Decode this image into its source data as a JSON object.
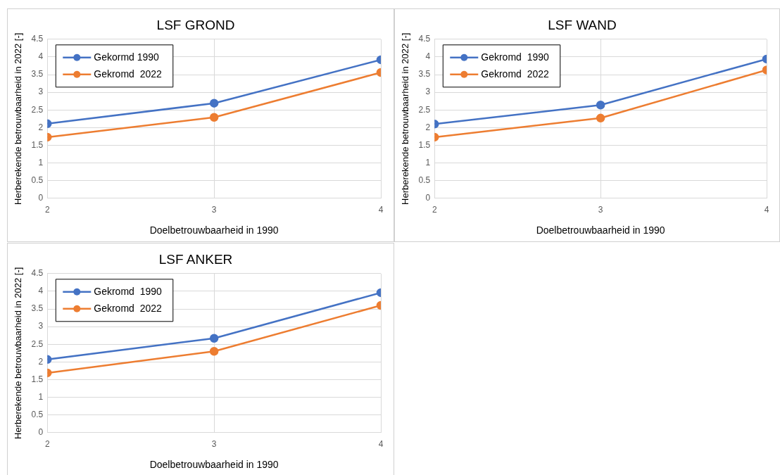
{
  "chart_data": [
    {
      "type": "line",
      "title": "LSF GROND",
      "xlabel": "Doelbetrouwbaarheid in 1990",
      "ylabel": "Herberekende betrouwbaarheid in 2022 [-]",
      "x": [
        2,
        3,
        4
      ],
      "xlim": [
        2,
        4
      ],
      "xticks": [
        2,
        3,
        4
      ],
      "ylim": [
        0,
        4.5
      ],
      "yticks": [
        0,
        0.5,
        1,
        1.5,
        2,
        2.5,
        3,
        3.5,
        4,
        4.5
      ],
      "grid": true,
      "legend": "top left",
      "marker": "circle",
      "line_style": "solid",
      "series": [
        {
          "name": "Gekormd 1990",
          "color": "#4472c4",
          "values": [
            2.11,
            2.69,
            3.92
          ]
        },
        {
          "name": "Gekromd  2022",
          "color": "#ed7d31",
          "values": [
            1.73,
            2.29,
            3.56
          ]
        }
      ]
    },
    {
      "type": "line",
      "title": "LSF WAND",
      "xlabel": "Doelbetrouwbaarheid in 1990",
      "ylabel": "Herberekende betrouwbaarheid in 2022 [-]",
      "x": [
        2,
        3,
        4
      ],
      "xlim": [
        2,
        4
      ],
      "xticks": [
        2,
        3,
        4
      ],
      "ylim": [
        0,
        4.5
      ],
      "yticks": [
        0,
        0.5,
        1,
        1.5,
        2,
        2.5,
        3,
        3.5,
        4,
        4.5
      ],
      "grid": true,
      "legend": "top left",
      "marker": "circle",
      "line_style": "solid",
      "series": [
        {
          "name": "Gekromd  1990",
          "color": "#4472c4",
          "values": [
            2.1,
            2.64,
            3.94
          ]
        },
        {
          "name": "Gekromd  2022",
          "color": "#ed7d31",
          "values": [
            1.73,
            2.27,
            3.63
          ]
        }
      ]
    },
    {
      "type": "line",
      "title": "LSF ANKER",
      "xlabel": "Doelbetrouwbaarheid in 1990",
      "ylabel": "Herberekende betrouwbaarheid in 2022 [-]",
      "x": [
        2,
        3,
        4
      ],
      "xlim": [
        2,
        4
      ],
      "xticks": [
        2,
        3,
        4
      ],
      "ylim": [
        0,
        4.5
      ],
      "yticks": [
        0,
        0.5,
        1,
        1.5,
        2,
        2.5,
        3,
        3.5,
        4,
        4.5
      ],
      "grid": true,
      "legend": "top left",
      "marker": "circle",
      "line_style": "solid",
      "series": [
        {
          "name": "Gekromd  1990",
          "color": "#4472c4",
          "values": [
            2.07,
            2.67,
            3.96
          ]
        },
        {
          "name": "Gekromd  2022",
          "color": "#ed7d31",
          "values": [
            1.69,
            2.3,
            3.6
          ]
        }
      ]
    }
  ]
}
